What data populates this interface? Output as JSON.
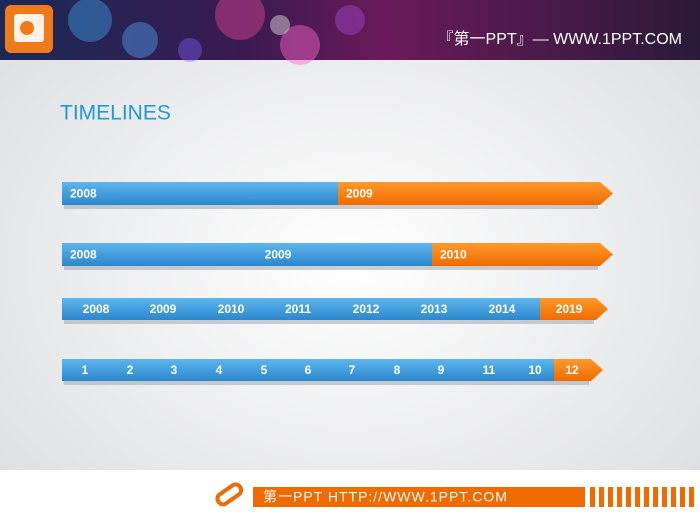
{
  "header": {
    "brand": "『第一PPT』— WWW.1PPT.COM"
  },
  "title": "TIMELINES",
  "timelines": [
    {
      "labels": [
        "2008",
        "2009"
      ]
    },
    {
      "labels": [
        "2008",
        "2009",
        "2010"
      ]
    },
    {
      "labels": [
        "2008",
        "2009",
        "2010",
        "2011",
        "2012",
        "2013",
        "2014",
        "2019"
      ]
    },
    {
      "labels": [
        "1",
        "2",
        "3",
        "4",
        "5",
        "6",
        "7",
        "8",
        "9",
        "11",
        "10",
        "12"
      ]
    }
  ],
  "footer": {
    "text": "第一PPT HTTP://WWW.1PPT.COM"
  }
}
